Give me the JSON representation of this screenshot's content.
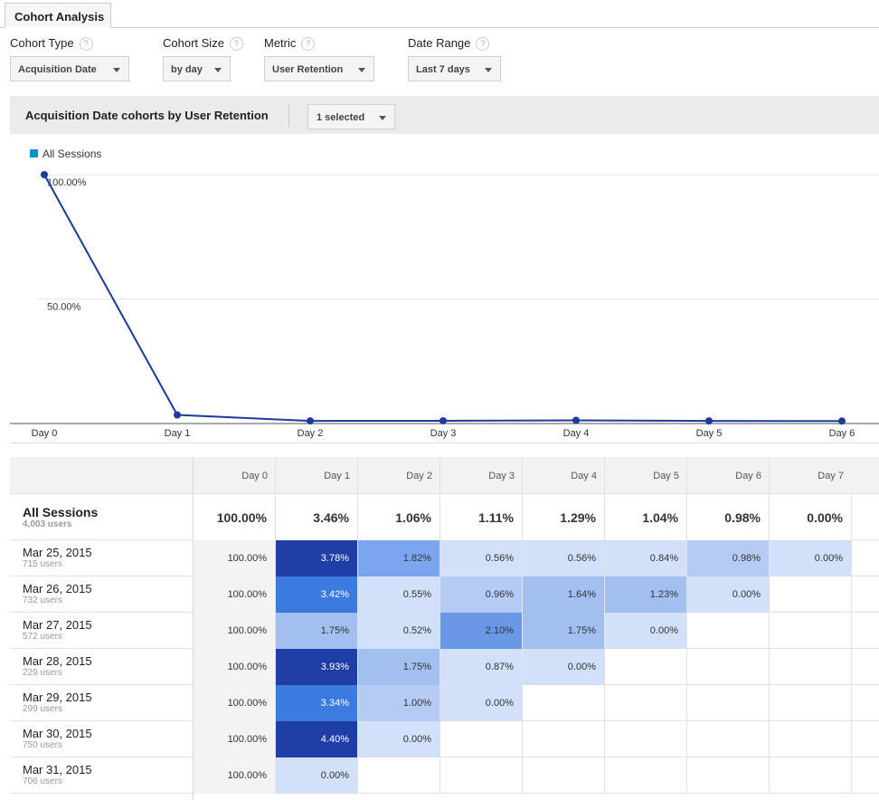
{
  "tab": "Cohort Analysis",
  "help": "?",
  "controls": [
    {
      "label": "Cohort Type",
      "value": "Acquisition Date"
    },
    {
      "label": "Cohort Size",
      "value": "by day"
    },
    {
      "label": "Metric",
      "value": "User Retention"
    },
    {
      "label": "Date Range",
      "value": "Last 7 days"
    }
  ],
  "panel": {
    "title": "Acquisition Date cohorts by User Retention",
    "selector": "1 selected"
  },
  "chart_data": {
    "type": "line",
    "categories": [
      "Day 0",
      "Day 1",
      "Day 2",
      "Day 3",
      "Day 4",
      "Day 5",
      "Day 6"
    ],
    "series": [
      {
        "name": "All Sessions",
        "color": "#1c3a9c",
        "values": [
          100,
          3.46,
          1.06,
          1.11,
          1.29,
          1.04,
          0.98
        ]
      }
    ],
    "ylim": [
      0,
      100
    ],
    "yticks": [
      {
        "value": 50,
        "label": "50.00%"
      },
      {
        "value": 100,
        "label": "100.00%"
      }
    ],
    "grid": true,
    "legend": "top-left"
  },
  "table": {
    "header": [
      "Day 0",
      "Day 1",
      "Day 2",
      "Day 3",
      "Day 4",
      "Day 5",
      "Day 6",
      "Day 7"
    ],
    "summary": {
      "name": "All Sessions",
      "users": "4,003 users",
      "cells": [
        "100.00%",
        "3.46%",
        "1.06%",
        "1.11%",
        "1.29%",
        "1.04%",
        "0.98%",
        "0.00%"
      ]
    },
    "rows": [
      {
        "name": "Mar 25, 2015",
        "users": "715 users",
        "cells": [
          "100.00%",
          "3.78%",
          "1.82%",
          "0.56%",
          "0.56%",
          "0.84%",
          "0.98%",
          "0.00%"
        ]
      },
      {
        "name": "Mar 26, 2015",
        "users": "732 users",
        "cells": [
          "100.00%",
          "3.42%",
          "0.55%",
          "0.96%",
          "1.64%",
          "1.23%",
          "0.00%"
        ]
      },
      {
        "name": "Mar 27, 2015",
        "users": "572 users",
        "cells": [
          "100.00%",
          "1.75%",
          "0.52%",
          "2.10%",
          "1.75%",
          "0.00%"
        ]
      },
      {
        "name": "Mar 28, 2015",
        "users": "229 users",
        "cells": [
          "100.00%",
          "3.93%",
          "1.75%",
          "0.87%",
          "0.00%"
        ]
      },
      {
        "name": "Mar 29, 2015",
        "users": "299 users",
        "cells": [
          "100.00%",
          "3.34%",
          "1.00%",
          "0.00%"
        ]
      },
      {
        "name": "Mar 30, 2015",
        "users": "750 users",
        "cells": [
          "100.00%",
          "4.40%",
          "0.00%"
        ]
      },
      {
        "name": "Mar 31, 2015",
        "users": "706 users",
        "cells": [
          "100.00%",
          "0.00%"
        ]
      }
    ]
  }
}
